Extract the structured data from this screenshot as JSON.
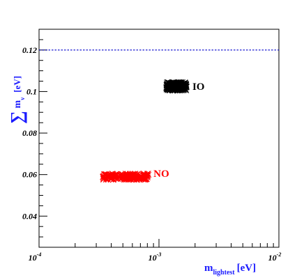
{
  "chart_data": {
    "type": "scatter",
    "x_scale": "log",
    "xlim": [
      0.0001,
      0.01
    ],
    "ylim": [
      0.025,
      0.13
    ],
    "x_tick_labels": [
      {
        "value": 0.0001,
        "base": "10",
        "exp": "-4"
      },
      {
        "value": 0.001,
        "base": "10",
        "exp": "-3"
      },
      {
        "value": 0.01,
        "base": "10",
        "exp": "-2"
      }
    ],
    "y_ticks": [
      0.04,
      0.06,
      0.08,
      0.1,
      0.12
    ],
    "y_tick_labels": [
      "0.04",
      "0.06",
      "0.08",
      "0.1",
      "0.12"
    ],
    "xlabel": {
      "main": "m",
      "sub": "lightest",
      "unit": "[eV]"
    },
    "ylabel": {
      "sigma": "∑",
      "main": "m",
      "sub": "ν",
      "unit": "[eV]"
    },
    "reference_line": {
      "y": 0.12,
      "style": "dashed",
      "color": "#0000cc"
    },
    "series": [
      {
        "name": "IO",
        "color": "#000000",
        "marker": "x",
        "x_range": [
          0.00115,
          0.0017
        ],
        "y_range": [
          0.1005,
          0.1045
        ]
      },
      {
        "name": "NO",
        "color": "#ff0000",
        "marker": "x",
        "x_range": [
          0.00034,
          0.00082
        ],
        "y_range": [
          0.0575,
          0.0605
        ]
      }
    ],
    "annotations": [
      {
        "text": "IO",
        "x": 0.0019,
        "y": 0.1025,
        "color": "#000000"
      },
      {
        "text": "NO",
        "x": 0.0009,
        "y": 0.0605,
        "color": "#ff0000"
      }
    ],
    "grid": false,
    "legend": "none"
  }
}
